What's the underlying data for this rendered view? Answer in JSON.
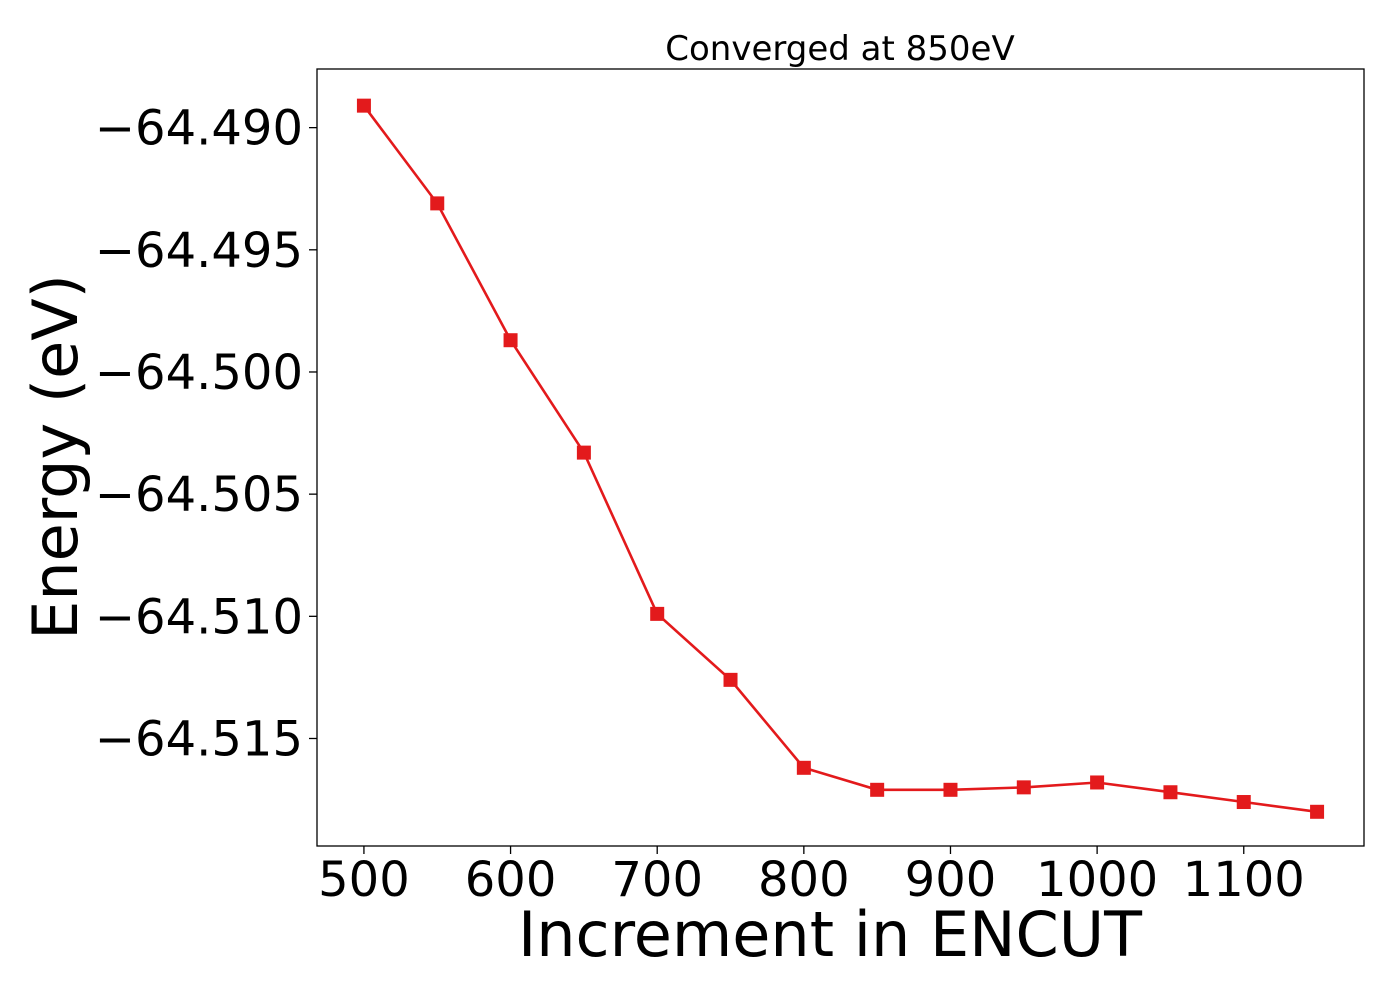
{
  "chart_data": {
    "type": "line",
    "title": "Converged at 850eV",
    "xlabel": "Increment in ENCUT",
    "ylabel": "Energy (eV)",
    "x": [
      500,
      550,
      600,
      650,
      700,
      750,
      800,
      850,
      900,
      950,
      1000,
      1050,
      1100,
      1150
    ],
    "series": [
      {
        "values": [
          -64.4891,
          -64.4931,
          -64.4987,
          -64.5033,
          -64.5099,
          -64.5126,
          -64.5162,
          -64.5171,
          -64.5171,
          -64.517,
          -64.5168,
          -64.5172,
          -64.5176,
          -64.518
        ],
        "color": "#e31a1c",
        "marker": "square"
      }
    ],
    "xticks": [
      500,
      600,
      700,
      800,
      900,
      1000,
      1100
    ],
    "xtick_labels": [
      "500",
      "600",
      "700",
      "800",
      "900",
      "1000",
      "1100"
    ],
    "yticks": [
      -64.49,
      -64.495,
      -64.5,
      -64.505,
      -64.51,
      -64.515
    ],
    "ytick_labels": [
      "−64.490",
      "−64.495",
      "−64.500",
      "−64.505",
      "−64.510",
      "−64.515"
    ],
    "xlim": [
      468,
      1182
    ],
    "ylim": [
      -64.5194,
      -64.4876
    ],
    "grid": false,
    "legend": "none"
  }
}
